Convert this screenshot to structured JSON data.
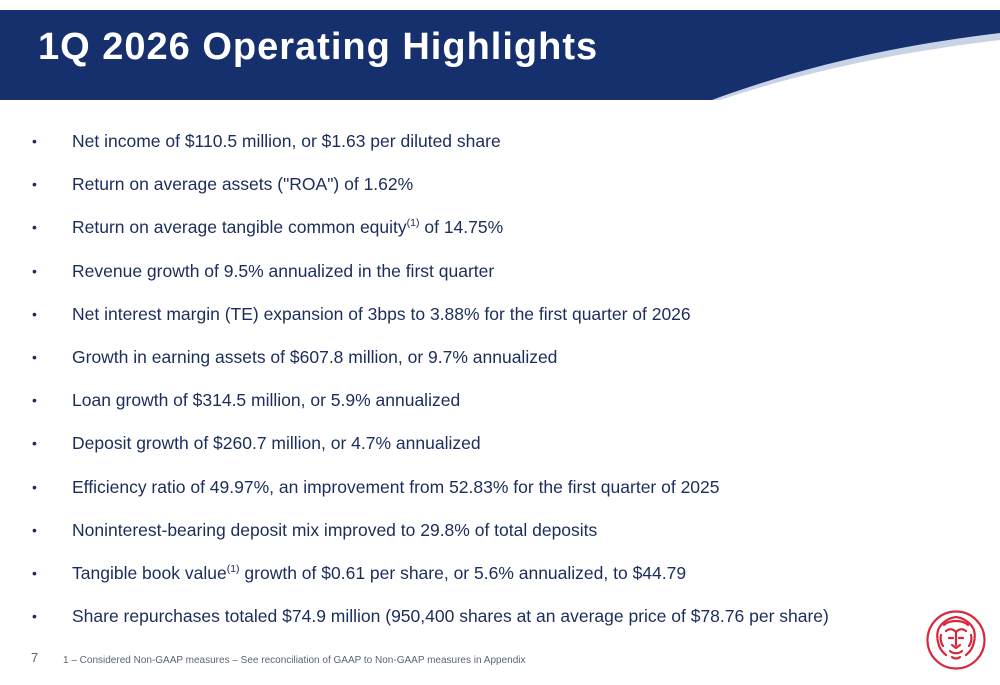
{
  "slide": {
    "title": "1Q 2026 Operating Highlights",
    "page_number": "7",
    "footnote": "1 – Considered Non-GAAP measures – See reconciliation of GAAP to Non-GAAP measures in Appendix"
  },
  "bullets": [
    {
      "text": "Net income of $110.5 million, or $1.63 per diluted share"
    },
    {
      "text": "Return on average assets (\"ROA\") of 1.62%"
    },
    {
      "text_before": "Return on average tangible common equity",
      "sup": "(1)",
      "text_after": " of 14.75%"
    },
    {
      "text": "Revenue growth of 9.5% annualized in the first quarter"
    },
    {
      "text": "Net interest margin (TE) expansion of 3bps to 3.88% for the first quarter of 2026"
    },
    {
      "text": "Growth in earning assets of $607.8 million, or 9.7% annualized"
    },
    {
      "text": "Loan growth of $314.5 million, or 5.9% annualized"
    },
    {
      "text": "Deposit growth of $260.7 million, or 4.7% annualized"
    },
    {
      "text": "Efficiency ratio of 49.97%, an improvement from 52.83% for the first quarter of 2025"
    },
    {
      "text": "Noninterest-bearing deposit mix improved to 29.8% of total deposits"
    },
    {
      "text_before": "Tangible book value",
      "sup": "(1)",
      "text_after": " growth of $0.61 per share, or 5.6% annualized, to $44.79"
    },
    {
      "text": "Share repurchases totaled $74.9 million (950,400 shares at an average price of $78.76 per share)"
    }
  ],
  "bullet_glyph": "•",
  "colors": {
    "header_navy": "#16306e",
    "header_accent": "#c8d3e6",
    "text_navy": "#1b2d5a",
    "logo_red": "#d9263c"
  },
  "icons": {
    "logo": "lion-head-logo"
  }
}
